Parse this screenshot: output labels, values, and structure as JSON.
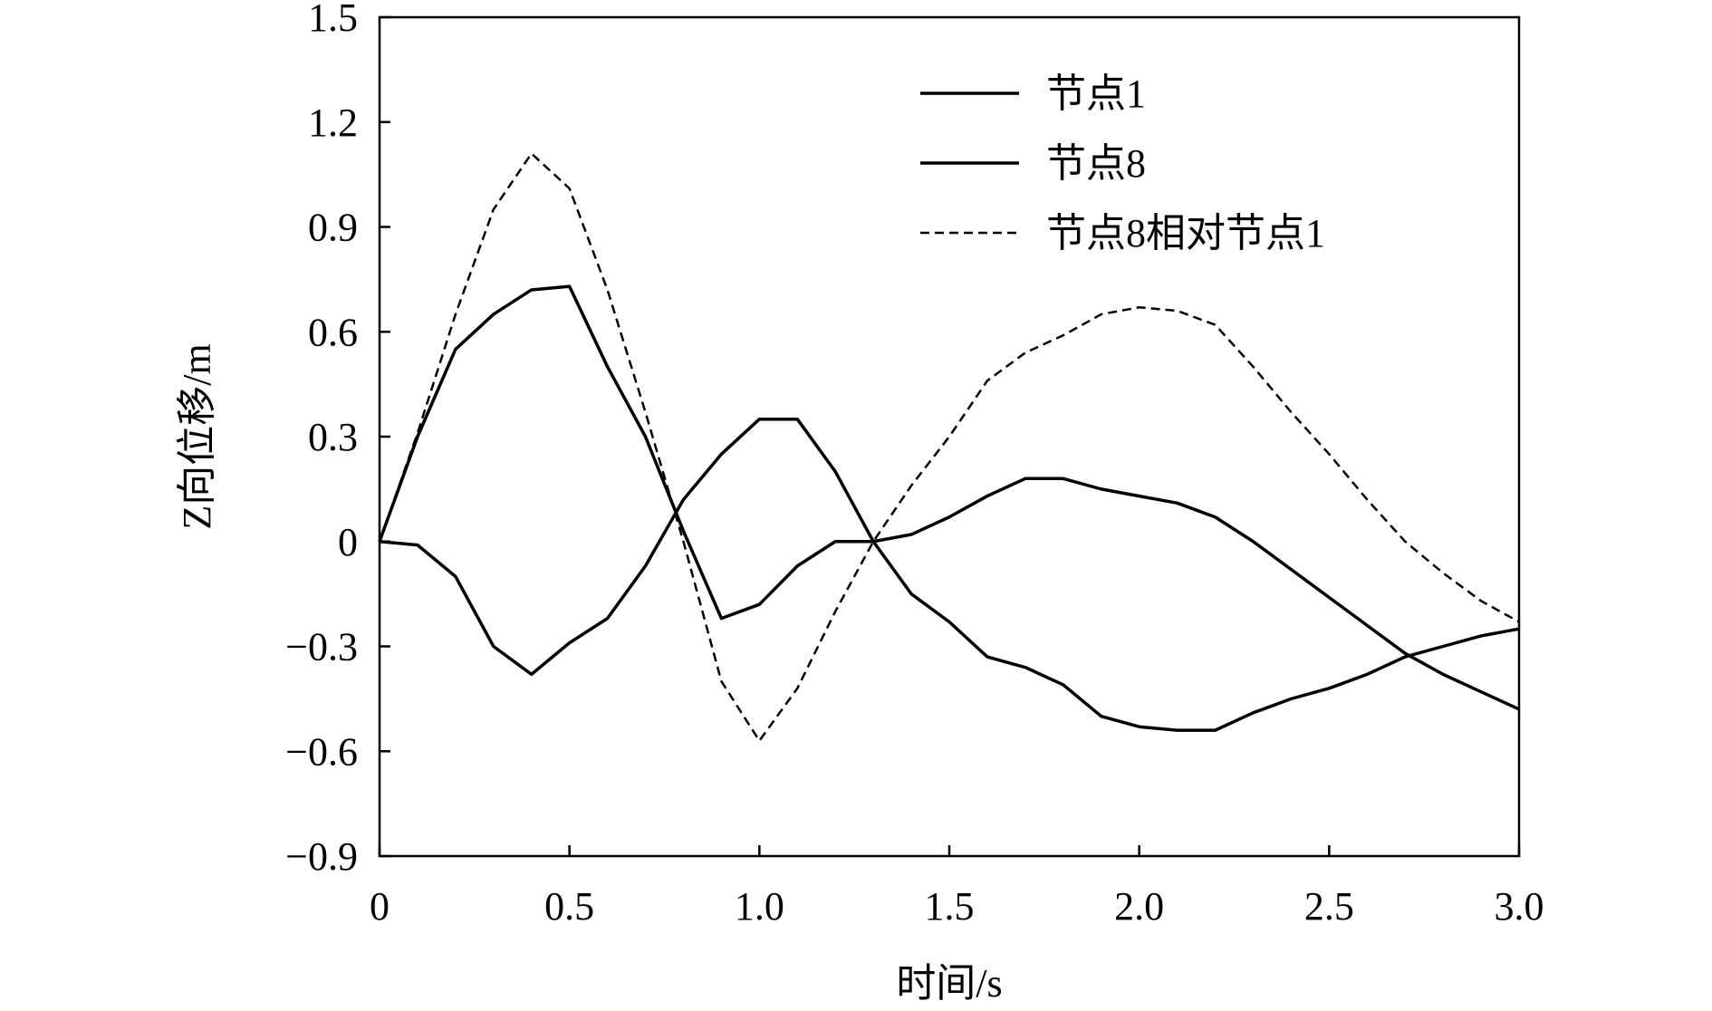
{
  "chart_data": {
    "type": "line",
    "xlabel": "时间/s",
    "ylabel": "Z向位移/m",
    "x": [
      0,
      0.1,
      0.2,
      0.3,
      0.4,
      0.5,
      0.6,
      0.7,
      0.8,
      0.9,
      1.0,
      1.1,
      1.2,
      1.3,
      1.4,
      1.5,
      1.6,
      1.7,
      1.8,
      1.9,
      2.0,
      2.1,
      2.2,
      2.3,
      2.4,
      2.5,
      2.6,
      2.7,
      2.8,
      2.9,
      3.0
    ],
    "series": [
      {
        "name": "节点1",
        "color": "#000000",
        "style": "solid",
        "values": [
          0,
          -0.01,
          -0.1,
          -0.3,
          -0.38,
          -0.29,
          -0.22,
          -0.07,
          0.12,
          0.25,
          0.35,
          0.35,
          0.2,
          0,
          -0.15,
          -0.23,
          -0.33,
          -0.36,
          -0.41,
          -0.5,
          -0.53,
          -0.54,
          -0.54,
          -0.49,
          -0.45,
          -0.42,
          -0.38,
          -0.33,
          -0.3,
          -0.27,
          -0.25
        ]
      },
      {
        "name": "节点8",
        "color": "#000000",
        "style": "solid",
        "values": [
          0,
          0.3,
          0.55,
          0.65,
          0.72,
          0.73,
          0.5,
          0.3,
          0.03,
          -0.22,
          -0.18,
          -0.07,
          0,
          0,
          0.02,
          0.07,
          0.13,
          0.18,
          0.18,
          0.15,
          0.13,
          0.11,
          0.07,
          0,
          -0.08,
          -0.16,
          -0.24,
          -0.32,
          -0.38,
          -0.43,
          -0.48
        ]
      },
      {
        "name": "节点8相对节点1",
        "color": "#000000",
        "style": "dashed",
        "values": [
          0,
          0.31,
          0.65,
          0.95,
          1.11,
          1.01,
          0.72,
          0.37,
          0,
          -0.4,
          -0.57,
          -0.42,
          -0.2,
          0,
          0.16,
          0.3,
          0.46,
          0.54,
          0.59,
          0.65,
          0.67,
          0.66,
          0.62,
          0.5,
          0.37,
          0.25,
          0.12,
          0,
          -0.09,
          -0.17,
          -0.23
        ]
      }
    ],
    "xlim": [
      0,
      3.0
    ],
    "xticks": [
      0,
      0.5,
      {
        "value": 1.0,
        "label": "1.0"
      },
      1.5,
      {
        "value": 2.0,
        "label": "2.0"
      },
      2.5,
      {
        "value": 3.0,
        "label": "3.0"
      }
    ],
    "ylim": [
      -0.9,
      1.5
    ],
    "yticks": [
      {
        "value": -0.9,
        "label": "−0.9"
      },
      {
        "value": -0.6,
        "label": "−0.6"
      },
      {
        "value": -0.3,
        "label": "−0.3"
      },
      0,
      0.3,
      0.6,
      0.9,
      1.2,
      1.5
    ],
    "legend": "upper-right"
  }
}
